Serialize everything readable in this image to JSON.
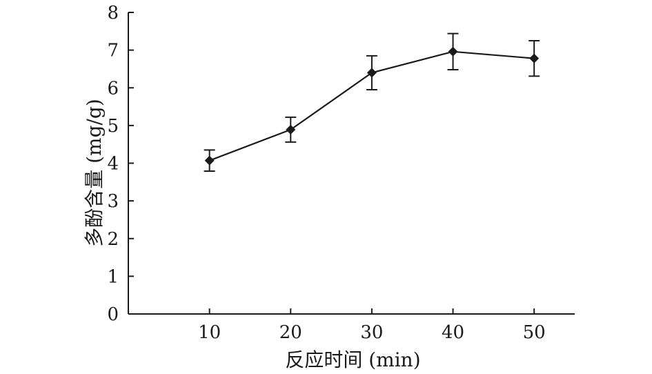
{
  "chart_data": {
    "type": "line",
    "xlabel": "反应时间 (min)",
    "ylabel": "多酚含量 (mg/g)",
    "xlim": [
      0,
      55
    ],
    "ylim": [
      0,
      8
    ],
    "x_ticks": [
      10,
      20,
      30,
      40,
      50
    ],
    "y_ticks": [
      0,
      1,
      2,
      3,
      4,
      5,
      6,
      7,
      8
    ],
    "grid": false,
    "series": [
      {
        "marker": "diamond",
        "color": "#1a1a1a",
        "points": [
          {
            "x": 10,
            "y": 4.07,
            "err": 0.28
          },
          {
            "x": 20,
            "y": 4.89,
            "err": 0.33
          },
          {
            "x": 30,
            "y": 6.4,
            "err": 0.45
          },
          {
            "x": 40,
            "y": 6.96,
            "err": 0.48
          },
          {
            "x": 50,
            "y": 6.78,
            "err": 0.47
          }
        ]
      }
    ]
  }
}
